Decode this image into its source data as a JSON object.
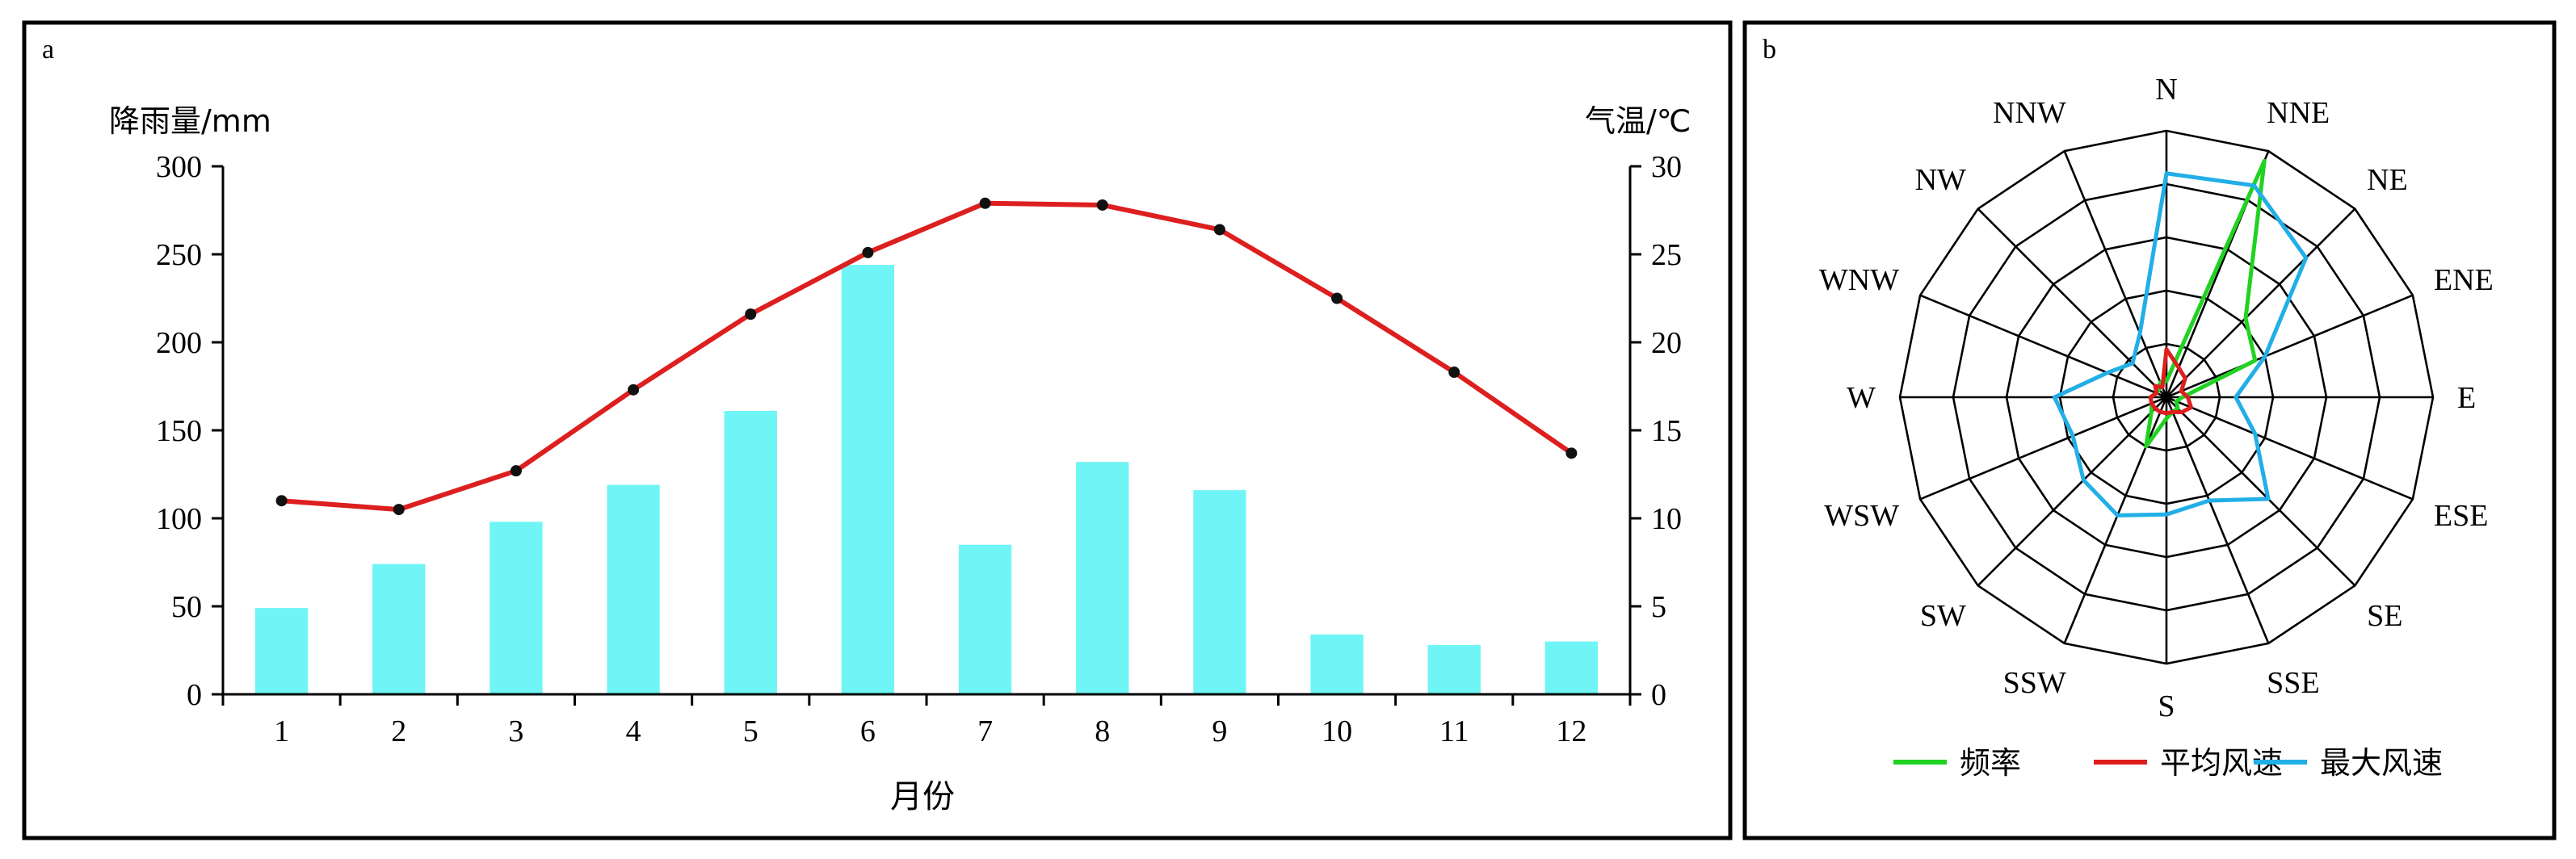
{
  "chart_data": [
    {
      "type": "bar+line",
      "panel_label": "a",
      "xlabel": "月份",
      "ylabel_left": "降雨量/mm",
      "ylabel_right": "气温/℃",
      "categories": [
        "1",
        "2",
        "3",
        "4",
        "5",
        "6",
        "7",
        "8",
        "9",
        "10",
        "11",
        "12"
      ],
      "ylim_left": [
        0,
        300
      ],
      "yticks_left": [
        "0",
        "50",
        "100",
        "150",
        "200",
        "250",
        "300"
      ],
      "ylim_right": [
        0,
        30
      ],
      "yticks_right": [
        "0",
        "5",
        "10",
        "15",
        "20",
        "25",
        "30"
      ],
      "series": [
        {
          "kind": "bar",
          "axis": "left",
          "color": "#6ff5f5",
          "values": [
            49,
            74,
            98,
            119,
            161,
            244,
            85,
            132,
            116,
            34,
            28,
            30
          ]
        },
        {
          "kind": "line",
          "axis": "right",
          "color": "#dd1f1f",
          "values": [
            11.0,
            10.5,
            12.7,
            17.3,
            21.6,
            25.1,
            27.9,
            27.8,
            26.4,
            22.5,
            18.3,
            13.7
          ]
        }
      ]
    },
    {
      "type": "radar",
      "panel_label": "b",
      "directions": [
        "N",
        "NNE",
        "NE",
        "ENE",
        "E",
        "ESE",
        "SE",
        "SSE",
        "S",
        "SSW",
        "SW",
        "WSW",
        "W",
        "WNW",
        "NW",
        "NNW"
      ],
      "rings": 5,
      "rmax": 5,
      "legend_position": "bottom",
      "series": [
        {
          "name": "频率",
          "color": "#22d222",
          "values": [
            0.3,
            4.8,
            2.1,
            1.8,
            0.3,
            0.2,
            0.3,
            0.3,
            0.4,
            1.0,
            0.4,
            0.3,
            0.3,
            0.2,
            0.2,
            0.3
          ]
        },
        {
          "name": "平均风速",
          "color": "#dd1f1f",
          "values": [
            0.9,
            0.6,
            0.5,
            0.3,
            0.4,
            0.5,
            0.4,
            0.3,
            0.3,
            0.3,
            0.3,
            0.3,
            0.3,
            0.2,
            0.3,
            0.2
          ]
        },
        {
          "name": "最大风速",
          "color": "#22aee6",
          "values": [
            4.2,
            4.3,
            3.7,
            2.0,
            1.3,
            1.8,
            2.7,
            2.1,
            2.2,
            2.4,
            2.2,
            1.9,
            2.1,
            1.2,
            0.9,
            1.3
          ]
        }
      ]
    }
  ]
}
